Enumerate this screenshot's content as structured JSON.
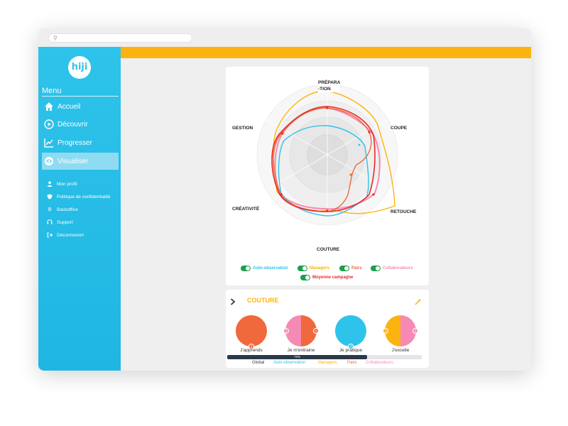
{
  "sidebar": {
    "logo": "hiji",
    "menu_title": "Menu",
    "nav": [
      {
        "label": "Accueil",
        "icon": "home-icon"
      },
      {
        "label": "Découvrir",
        "icon": "play-circle-icon"
      },
      {
        "label": "Progresser",
        "icon": "line-chart-icon"
      },
      {
        "label": "Visualiser",
        "icon": "eye-icon",
        "active": true
      }
    ],
    "sub": [
      {
        "label": "Mon profil",
        "icon": "user-icon"
      },
      {
        "label": "Politique de confidentialité",
        "icon": "shield-icon"
      },
      {
        "label": "Backoffice",
        "icon": "gear-icon"
      },
      {
        "label": "Support",
        "icon": "headset-icon"
      },
      {
        "label": "Déconnexion",
        "icon": "logout-icon"
      }
    ]
  },
  "colors": {
    "sidebar": "#2ec3ea",
    "topbar": "#fbb40f",
    "auto": "#2ec3ea",
    "managers": "#fbb40f",
    "pairs": "#f0693c",
    "collab": "#f68ab4",
    "moyenne": "#e82a2a"
  },
  "radar": {
    "axes": {
      "preparation": "PRÉPARA\n-TION",
      "coupe": "COUPE",
      "retouche": "RETOUCHE",
      "couture": "COUTURE",
      "creativite": "CRÉATIVITÉ",
      "gestion": "GESTION"
    },
    "legend": {
      "auto": "Auto-observation",
      "managers": "Managers",
      "pairs": "Pairs",
      "collab": "Collaborateurs",
      "moyenne": "Moyenne campagne"
    }
  },
  "detail": {
    "title": "COUTURE",
    "circles": [
      {
        "caption": "J'apprends"
      },
      {
        "caption": "Je m'entraine"
      },
      {
        "caption": "Je pratique"
      },
      {
        "caption": "J'excelle"
      }
    ],
    "progress_percent": "72%",
    "progress_value": 0.72,
    "bottom_legend": {
      "global": "Global",
      "auto": "Auto-observation",
      "managers": "Managers",
      "pairs": "Pairs",
      "collab": "Collaborateurs"
    },
    "badge_values": {
      "a": "1",
      "b1": "1",
      "b2": "1",
      "c": "2",
      "d1": "1",
      "d2": "1"
    }
  }
}
